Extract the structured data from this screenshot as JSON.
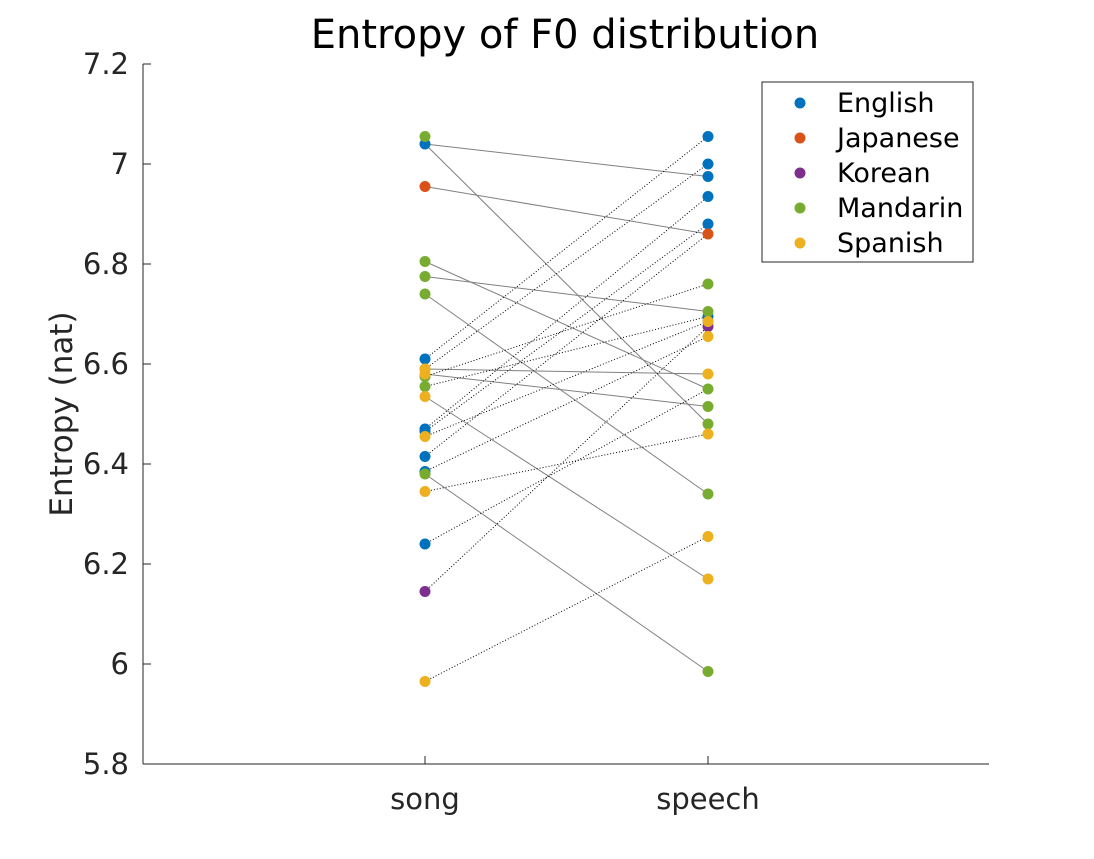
{
  "chart_data": {
    "type": "scatter",
    "title": "Entropy of F0 distribution",
    "xlabel": "",
    "ylabel": "Entropy (nat)",
    "categories": [
      "song",
      "speech"
    ],
    "ylim": [
      5.8,
      7.2
    ],
    "yticks": [
      "5.8",
      "6",
      "6.2",
      "6.4",
      "6.6",
      "6.8",
      "7",
      "7.2"
    ],
    "legend_position": "top-right",
    "grid": false,
    "colors": {
      "English": "#0072BD",
      "Japanese": "#D95319",
      "Korean": "#7E2F8E",
      "Mandarin": "#77AC30",
      "Spanish": "#EDB120"
    },
    "connector_colors": {
      "solid": "#808080",
      "dotted": "#000000"
    },
    "series": [
      {
        "name": "English",
        "song": [
          7.04,
          6.61,
          6.47,
          6.465,
          6.415,
          6.385,
          6.24
        ],
        "speech": [
          7.055,
          7.0,
          6.975,
          6.935,
          6.88,
          6.695,
          6.685
        ]
      },
      {
        "name": "Japanese",
        "song": [
          6.955
        ],
        "speech": [
          6.86
        ]
      },
      {
        "name": "Korean",
        "song": [
          6.145
        ],
        "speech": [
          6.675
        ]
      },
      {
        "name": "Mandarin",
        "song": [
          7.055,
          6.805,
          6.775,
          6.74,
          6.59,
          6.575,
          6.555,
          6.38
        ],
        "speech": [
          6.76,
          6.705,
          6.55,
          6.515,
          6.48,
          6.34,
          5.985
        ]
      },
      {
        "name": "Spanish",
        "song": [
          6.59,
          6.58,
          6.535,
          6.455,
          6.345,
          5.965
        ],
        "speech": [
          6.685,
          6.655,
          6.58,
          6.46,
          6.255,
          6.17
        ]
      }
    ],
    "pairs": [
      {
        "song": 7.04,
        "speech": 6.975,
        "style": "solid"
      },
      {
        "song": 7.04,
        "speech": 6.48,
        "style": "solid"
      },
      {
        "song": 6.955,
        "speech": 6.86,
        "style": "solid"
      },
      {
        "song": 6.805,
        "speech": 6.55,
        "style": "solid"
      },
      {
        "song": 6.775,
        "speech": 6.705,
        "style": "solid"
      },
      {
        "song": 6.74,
        "speech": 6.34,
        "style": "solid"
      },
      {
        "song": 6.59,
        "speech": 6.58,
        "style": "solid"
      },
      {
        "song": 6.58,
        "speech": 6.515,
        "style": "solid"
      },
      {
        "song": 6.535,
        "speech": 6.17,
        "style": "solid"
      },
      {
        "song": 6.38,
        "speech": 5.985,
        "style": "solid"
      },
      {
        "song": 6.61,
        "speech": 7.055,
        "style": "dotted"
      },
      {
        "song": 6.59,
        "speech": 7.0,
        "style": "dotted"
      },
      {
        "song": 6.47,
        "speech": 6.935,
        "style": "dotted"
      },
      {
        "song": 6.465,
        "speech": 6.88,
        "style": "dotted"
      },
      {
        "song": 6.415,
        "speech": 6.86,
        "style": "dotted"
      },
      {
        "song": 6.575,
        "speech": 6.76,
        "style": "dotted"
      },
      {
        "song": 6.555,
        "speech": 6.695,
        "style": "dotted"
      },
      {
        "song": 6.455,
        "speech": 6.685,
        "style": "dotted"
      },
      {
        "song": 6.385,
        "speech": 6.655,
        "style": "dotted"
      },
      {
        "song": 6.145,
        "speech": 6.675,
        "style": "dotted"
      },
      {
        "song": 6.345,
        "speech": 6.46,
        "style": "dotted"
      },
      {
        "song": 6.24,
        "speech": 6.55,
        "style": "dotted"
      },
      {
        "song": 5.965,
        "speech": 6.255,
        "style": "dotted"
      }
    ]
  }
}
